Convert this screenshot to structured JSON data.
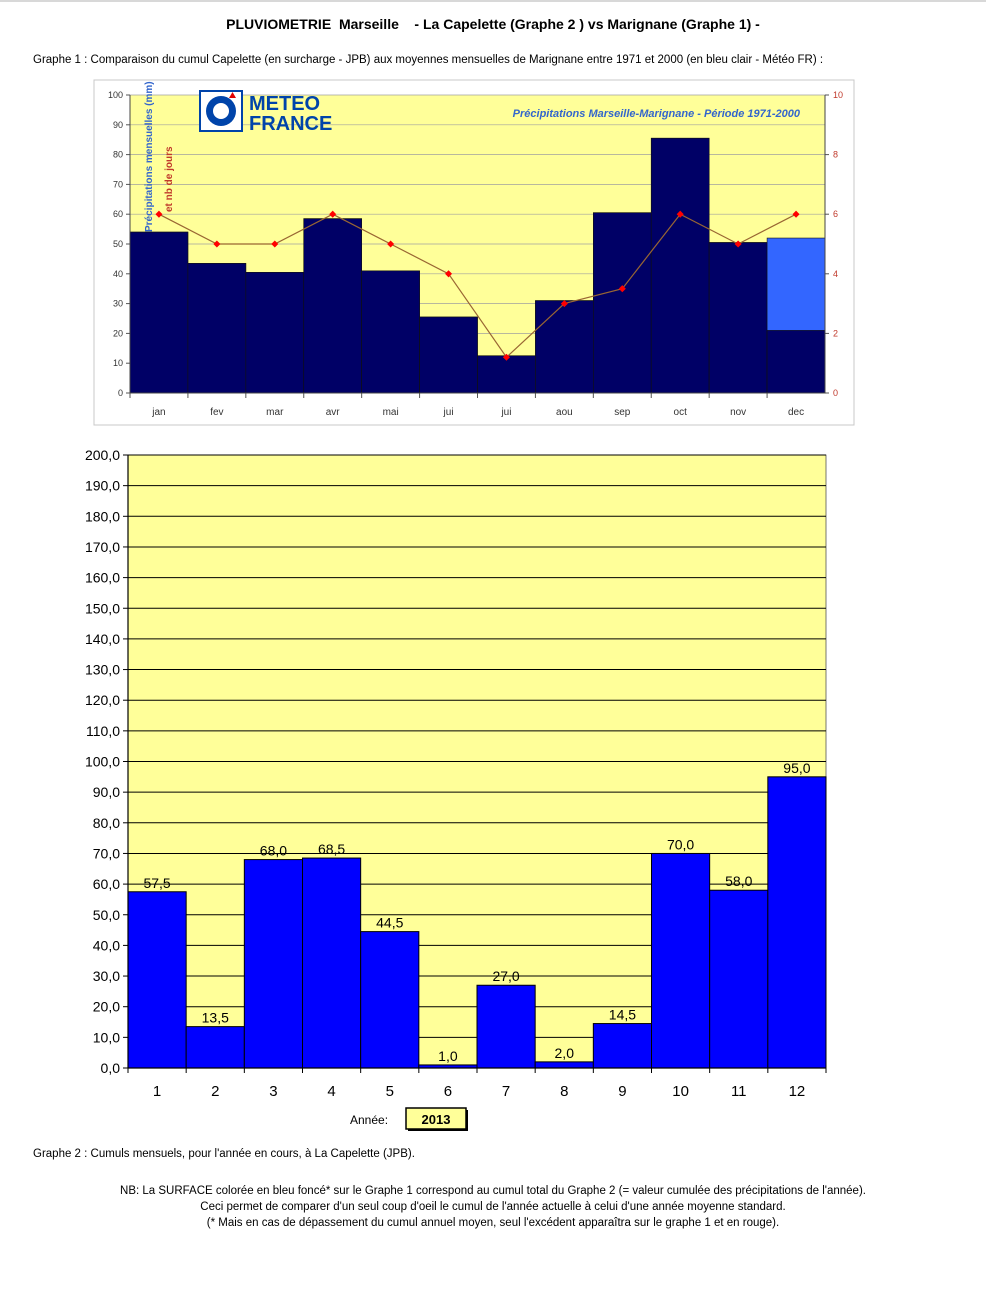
{
  "header": {
    "title": "PLUVIOMETRIE  Marseille    - La Capelette (Graphe 2 ) vs Marignane (Graphe 1) -",
    "graph1_caption": "Graphe 1 : Comparaison du cumul Capelette (en surcharge - JPB) aux moyennes mensuelles de Marignane entre 1971 et 2000 (en bleu clair - Météo FR) :"
  },
  "chart_data": [
    {
      "type": "bar",
      "title": "Précipitations Marseille-Marignane - Période 1971-2000",
      "logo_text": [
        "METEO",
        "FRANCE"
      ],
      "ylabel": "Précipitations mensuelles (mm)",
      "y2label": "et nb de jours",
      "categories": [
        "jan",
        "fev",
        "mar",
        "avr",
        "mai",
        "jui",
        "jui",
        "aou",
        "sep",
        "oct",
        "nov",
        "dec"
      ],
      "ylim": [
        0,
        100
      ],
      "yticks": [
        "0",
        "10",
        "20",
        "30",
        "40",
        "50",
        "60",
        "70",
        "80",
        "90",
        "100"
      ],
      "y2lim": [
        0,
        10
      ],
      "y2ticks": [
        "0",
        "2",
        "4",
        "6",
        "8",
        "10"
      ],
      "series": [
        {
          "values": [
            54,
            43.5,
            40.5,
            58.5,
            41,
            25.5,
            12.5,
            31,
            60.5,
            85.5,
            50.5,
            52
          ]
        },
        {
          "values": [
            54,
            43.5,
            40.5,
            58.5,
            41,
            25.5,
            12.5,
            31,
            60.5,
            85.5,
            50.5,
            21
          ]
        },
        {
          "axis": "right",
          "type": "line",
          "values": [
            6,
            5,
            5,
            6,
            5,
            4,
            1.2,
            3,
            3.5,
            6,
            5,
            6
          ]
        }
      ],
      "grid": true,
      "colors": {
        "background": "#ffff99",
        "dark_bar": "#000066",
        "light_bar": "#3366ff",
        "line": "#996633",
        "marker": "#ff0000",
        "title": "#3366cc",
        "logo": "#0044aa"
      }
    },
    {
      "type": "bar",
      "title": "",
      "categories": [
        "1",
        "2",
        "3",
        "4",
        "5",
        "6",
        "7",
        "8",
        "9",
        "10",
        "11",
        "12"
      ],
      "values": [
        57.5,
        13.5,
        68.0,
        68.5,
        44.5,
        1.0,
        27.0,
        2.0,
        14.5,
        70.0,
        58.0,
        95.0
      ],
      "value_labels": [
        "57,5",
        "13,5",
        "68,0",
        "68,5",
        "44,5",
        "1,0",
        "27,0",
        "2,0",
        "14,5",
        "70,0",
        "58,0",
        "95,0"
      ],
      "ylim": [
        0,
        200
      ],
      "yticks": [
        "0,0",
        "10,0",
        "20,0",
        "30,0",
        "40,0",
        "50,0",
        "60,0",
        "70,0",
        "80,0",
        "90,0",
        "100,0",
        "110,0",
        "120,0",
        "130,0",
        "140,0",
        "150,0",
        "160,0",
        "170,0",
        "180,0",
        "190,0",
        "200,0"
      ],
      "grid": true,
      "year_label": "Année:",
      "year_value": "2013",
      "colors": {
        "background": "#ffff99",
        "bar": "#0000ff"
      }
    }
  ],
  "footer": {
    "graph2_caption": "Graphe 2 : Cumuls mensuels, pour l'année en cours, à La Capelette (JPB).",
    "notes": [
      "NB: La SURFACE colorée en bleu foncé* sur le Graphe 1 correspond au cumul total du Graphe 2 (= valeur cumulée des précipitations de l'année).",
      "Ceci permet de comparer d'un seul coup d'oeil le cumul de l'année actuelle à celui d'une année moyenne standard.",
      "(* Mais en cas de dépassement du cumul annuel moyen, seul l'excédent apparaîtra sur le graphe 1 et en rouge)."
    ]
  }
}
